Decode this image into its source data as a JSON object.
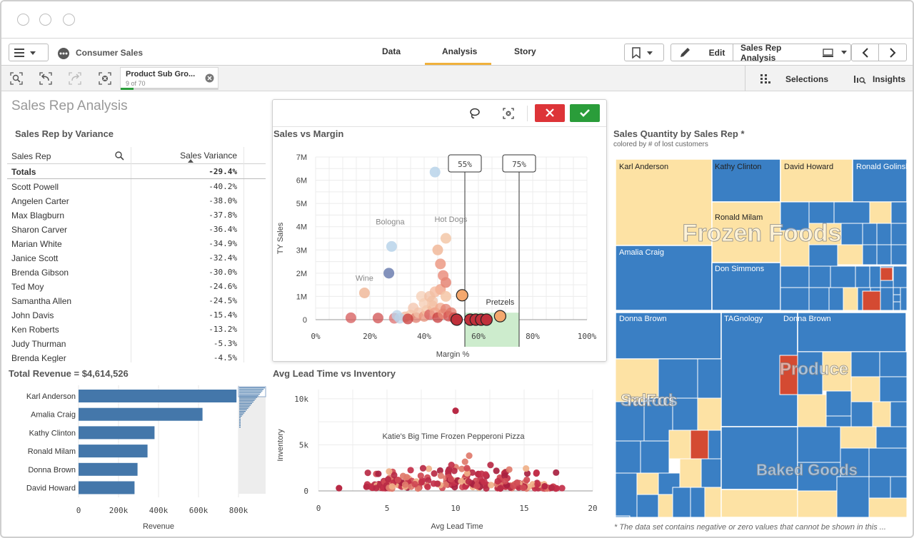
{
  "app": {
    "title": "Consumer Sales"
  },
  "tabs": [
    {
      "label": "Data"
    },
    {
      "label": "Analysis"
    },
    {
      "label": "Story"
    }
  ],
  "toolbar": {
    "edit_label": "Edit",
    "sheet_label": "Sales Rep Analysis"
  },
  "selection_bar": {
    "chip_title": "Product Sub Gro...",
    "chip_sub": "9 of 70",
    "selections_label": "Selections",
    "insights_label": "Insights"
  },
  "sheet": {
    "title": "Sales Rep Analysis"
  },
  "variance_table": {
    "title": "Sales Rep by Variance",
    "col_rep": "Sales Rep",
    "col_var": "Sales Variance",
    "totals_label": "Totals",
    "totals_value": "-29.4%",
    "rows": [
      {
        "name": "Scott Powell",
        "value": "-40.2%"
      },
      {
        "name": "Angelen Carter",
        "value": "-38.0%"
      },
      {
        "name": "Max Blagburn",
        "value": "-37.8%"
      },
      {
        "name": "Sharon Carver",
        "value": "-36.4%"
      },
      {
        "name": "Marian White",
        "value": "-34.9%"
      },
      {
        "name": "Janice Scott",
        "value": "-32.4%"
      },
      {
        "name": "Brenda Gibson",
        "value": "-30.0%"
      },
      {
        "name": "Ted Moy",
        "value": "-24.6%"
      },
      {
        "name": "Samantha Allen",
        "value": "-24.5%"
      },
      {
        "name": "John Davis",
        "value": "-15.4%"
      },
      {
        "name": "Ken Roberts",
        "value": "-13.2%"
      },
      {
        "name": "Judy Thurman",
        "value": "-5.3%"
      },
      {
        "name": "Brenda Kegler",
        "value": "-4.5%"
      }
    ]
  },
  "scatter1": {
    "title": "Sales vs Margin",
    "xlabel": "Margin %",
    "ylabel": "TY Sales",
    "xticks": [
      "0%",
      "20%",
      "40%",
      "60%",
      "80%",
      "100%"
    ],
    "yticks": [
      "0",
      "1M",
      "2M",
      "3M",
      "4M",
      "5M",
      "6M",
      "7M"
    ],
    "ref_lines": [
      "55%",
      "75%"
    ],
    "labels": [
      "Bologna",
      "Hot Dogs",
      "Wine",
      "Pretzels"
    ]
  },
  "revenue": {
    "title": "Total Revenue = $4,614,526",
    "xlabel": "Revenue",
    "xticks": [
      "0",
      "200k",
      "400k",
      "600k",
      "800k"
    ]
  },
  "scatter2": {
    "title": "Avg Lead Time vs Inventory",
    "xlabel": "Avg Lead Time",
    "ylabel": "Inventory",
    "xticks": [
      "0",
      "5",
      "10",
      "15",
      "20"
    ],
    "yticks": [
      "0",
      "5k",
      "10k"
    ],
    "annotation": "Katie's Big Time Frozen Pepperoni Pizza"
  },
  "treemap": {
    "title": "Sales Quantity by Sales Rep *",
    "subtitle": "colored by # of lost customers",
    "footnote": "* The data set contains negative or zero values that cannot be shown in this ...",
    "reps": [
      "Karl Anderson",
      "Kathy Clinton",
      "David Howard",
      "Ronald Golinski",
      "Ronald Milam",
      "Amalia Craig",
      "Don Simmons",
      "Donna Brown",
      "TAGnology",
      "Donna Brown"
    ],
    "categories": [
      "Frozen Foods",
      "Produce",
      "Snack Foods",
      "Baked Goods"
    ]
  },
  "chart_data": [
    {
      "type": "table",
      "title": "Sales Rep by Variance",
      "columns": [
        "Sales Rep",
        "Sales Variance"
      ],
      "rows": [
        [
          "Totals",
          "-29.4%"
        ],
        [
          "Scott Powell",
          "-40.2%"
        ],
        [
          "Angelen Carter",
          "-38.0%"
        ],
        [
          "Max Blagburn",
          "-37.8%"
        ],
        [
          "Sharon Carver",
          "-36.4%"
        ],
        [
          "Marian White",
          "-34.9%"
        ],
        [
          "Janice Scott",
          "-32.4%"
        ],
        [
          "Brenda Gibson",
          "-30.0%"
        ],
        [
          "Ted Moy",
          "-24.6%"
        ],
        [
          "Samantha Allen",
          "-24.5%"
        ],
        [
          "John Davis",
          "-15.4%"
        ],
        [
          "Ken Roberts",
          "-13.2%"
        ],
        [
          "Judy Thurman",
          "-5.3%"
        ],
        [
          "Brenda Kegler",
          "-4.5%"
        ]
      ]
    },
    {
      "type": "scatter",
      "title": "Sales vs Margin",
      "xlabel": "Margin %",
      "ylabel": "TY Sales",
      "xlim": [
        0,
        100
      ],
      "ylim": [
        0,
        7000000
      ],
      "reference_lines": [
        55,
        75
      ],
      "points": [
        {
          "x": 44,
          "y": 6350000,
          "color": "#b9d3ea"
        },
        {
          "x": 28,
          "y": 3150000,
          "color": "#b9d3ea",
          "label": "Bologna"
        },
        {
          "x": 48,
          "y": 3500000,
          "color": "#f3c8a8",
          "label": "Hot Dogs"
        },
        {
          "x": 27,
          "y": 2000000,
          "color": "#6d7fb0"
        },
        {
          "x": 18,
          "y": 1150000,
          "color": "#f0b89a",
          "label": "Wine"
        },
        {
          "x": 45,
          "y": 3000000,
          "color": "#f1b99a"
        },
        {
          "x": 46,
          "y": 2400000,
          "color": "#ec9a85"
        },
        {
          "x": 48,
          "y": 1600000,
          "color": "#e58574"
        },
        {
          "x": 48,
          "y": 1000000,
          "color": "#f5c5a6"
        },
        {
          "x": 54,
          "y": 1050000,
          "color": "#f4a86e",
          "selected": true
        },
        {
          "x": 68,
          "y": 150000,
          "color": "#f4a86e",
          "selected": true,
          "label": "Pretzels"
        },
        {
          "x": 52,
          "y": 0,
          "color": "#c0303a",
          "selected": true
        },
        {
          "x": 57,
          "y": 0,
          "color": "#c0303a",
          "selected": true
        },
        {
          "x": 59,
          "y": 0,
          "color": "#c0303a",
          "selected": true
        },
        {
          "x": 61,
          "y": 0,
          "color": "#c0303a",
          "selected": true
        },
        {
          "x": 63,
          "y": 0,
          "color": "#c0303a",
          "selected": true
        }
      ]
    },
    {
      "type": "bar",
      "title": "Total Revenue = $4,614,526",
      "xlabel": "Revenue",
      "xlim": [
        0,
        800000
      ],
      "categories": [
        "Karl Anderson",
        "Amalia Craig",
        "Kathy Clinton",
        "Ronald Milam",
        "Donna Brown",
        "David Howard"
      ],
      "values": [
        790000,
        620000,
        380000,
        345000,
        295000,
        280000
      ]
    },
    {
      "type": "scatter",
      "title": "Avg Lead Time vs Inventory",
      "xlabel": "Avg Lead Time",
      "ylabel": "Inventory",
      "xlim": [
        0,
        20
      ],
      "ylim": [
        0,
        11000
      ],
      "annotation": "Katie's Big Time Frozen Pepperoni Pizza",
      "highlight_point": {
        "x": 10,
        "y": 8700
      }
    },
    {
      "type": "heatmap",
      "title": "Sales Quantity by Sales Rep *",
      "subtitle": "colored by # of lost customers",
      "groups": [
        "Frozen Foods",
        "Produce",
        "Snack Foods",
        "Baked Goods"
      ]
    }
  ]
}
